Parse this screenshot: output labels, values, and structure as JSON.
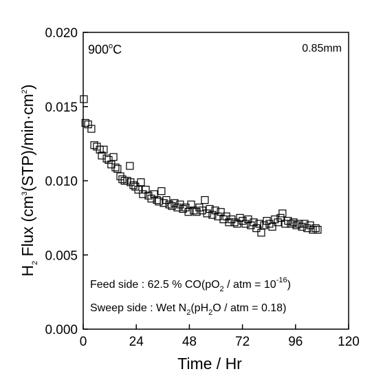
{
  "chart_data": {
    "type": "scatter",
    "x_label": "Time / Hr",
    "y_label": [
      "H",
      "2",
      " Flux (cm",
      "3",
      "(STP)/min·cm",
      "2",
      ")"
    ],
    "annotations": {
      "temperature": [
        "900",
        "o",
        "C"
      ],
      "thickness": "0.85mm",
      "feed": [
        "Feed side :  62.5 % CO(pO",
        "2",
        " / atm = 10",
        "-16",
        ")"
      ],
      "sweep": [
        "Sweep side : Wet N",
        "2",
        "(pH",
        "2",
        "O / atm = 0.18)"
      ]
    },
    "xlim": [
      0,
      120
    ],
    "xticks": [
      0,
      24,
      48,
      72,
      96,
      120
    ],
    "ylim": [
      0,
      0.02
    ],
    "yticks": [
      {
        "value": 0,
        "label": "0.000"
      },
      {
        "value": 0.005,
        "label": "0.005"
      },
      {
        "value": 0.01,
        "label": "0.010"
      },
      {
        "value": 0.015,
        "label": "0.015"
      },
      {
        "value": 0.02,
        "label": "0.020"
      }
    ],
    "grid": false,
    "marker_color": "#000000",
    "x": [
      0.3,
      1,
      2.2,
      3.7,
      5,
      6.2,
      7.5,
      8.4,
      9.3,
      10.6,
      11.5,
      12.7,
      13.7,
      14.6,
      15.5,
      16.8,
      17.7,
      18.7,
      19.9,
      21.1,
      21.4,
      22.7,
      23.6,
      24.9,
      26.1,
      27,
      28.3,
      29.5,
      30.8,
      32,
      33.3,
      34.2,
      35.4,
      36.4,
      37.6,
      38.9,
      40.1,
      41.3,
      42.6,
      43.8,
      45.1,
      46.3,
      47.6,
      48.8,
      50,
      51.3,
      52.5,
      53.8,
      55,
      56,
      57.2,
      58.4,
      59.7,
      60.9,
      62.2,
      63.4,
      64.7,
      65.9,
      67.1,
      68.4,
      69.6,
      70.9,
      72.1,
      73.4,
      74.6,
      75.8,
      77.1,
      78.3,
      79.6,
      80.5,
      81.8,
      83,
      84.2,
      85.5,
      86.7,
      88,
      89.2,
      90.1,
      91.4,
      92.6,
      93.9,
      95.1,
      96.4,
      97.6,
      98.9,
      100.1,
      101.3,
      102.6,
      103.8,
      105.1,
      106
    ],
    "values": [
      0.0155,
      0.0139,
      0.0138,
      0.0135,
      0.0124,
      0.0123,
      0.0121,
      0.0117,
      0.0121,
      0.0115,
      0.0114,
      0.0111,
      0.0116,
      0.0109,
      0.0108,
      0.0103,
      0.0101,
      0.01,
      0.01,
      0.011,
      0.0099,
      0.0097,
      0.0096,
      0.0094,
      0.0099,
      0.0091,
      0.0094,
      0.009,
      0.0088,
      0.0091,
      0.0087,
      0.0086,
      0.0093,
      0.0085,
      0.0087,
      0.0084,
      0.0083,
      0.0085,
      0.0082,
      0.0084,
      0.0081,
      0.0082,
      0.0079,
      0.0084,
      0.008,
      0.0079,
      0.0082,
      0.008,
      0.0087,
      0.0078,
      0.0081,
      0.0077,
      0.008,
      0.0076,
      0.0079,
      0.0074,
      0.0076,
      0.0072,
      0.0074,
      0.0072,
      0.0071,
      0.0075,
      0.0073,
      0.0071,
      0.0074,
      0.007,
      0.0072,
      0.0068,
      0.0071,
      0.0065,
      0.007,
      0.0073,
      0.0071,
      0.0069,
      0.0074,
      0.0072,
      0.0075,
      0.0078,
      0.0071,
      0.0073,
      0.0071,
      0.0072,
      0.007,
      0.0071,
      0.0069,
      0.0071,
      0.0068,
      0.007,
      0.0067,
      0.0068,
      0.0067
    ]
  }
}
